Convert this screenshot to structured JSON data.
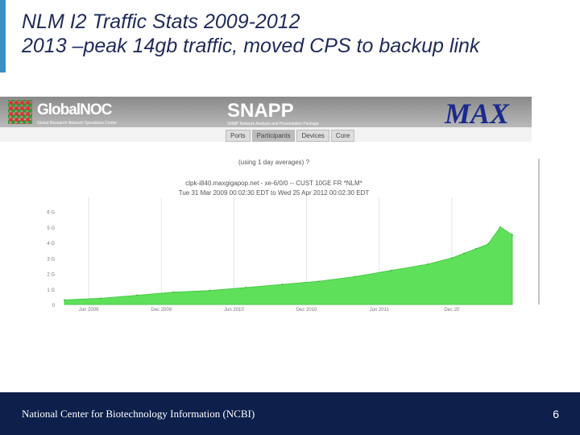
{
  "slide": {
    "title_line1": "NLM  I2 Traffic Stats 2009-2012",
    "title_line2": "2013 –peak 14gb traffic, moved CPS to backup link",
    "footer": "National Center for Biotechnology Information (NCBI)",
    "page_number": "6"
  },
  "banner": {
    "globalnoc": "GlobalNOC",
    "globalnoc_sub": "Global Research Network Operations Center",
    "snapp": "SNAPP",
    "snapp_sub": "SNMP Network Analysis and Presentation Package",
    "max": "MAX",
    "tabs": [
      "Ports",
      "Participants",
      "Devices",
      "Core"
    ],
    "active_tab": "Participants"
  },
  "chart_data": {
    "type": "area",
    "averaging_note": "(using 1 day averages) ?",
    "port": "clpk-i840.maxgigapop.net - xe-6/0/0 -- CUST 10GE FR *NLM*",
    "date_range": "Tue 31 Mar 2009 00:02:30 EDT to Wed 25 Apr 2012 00:02:30 EDT",
    "x_ticks": [
      "Jun 2009",
      "Dec 2009",
      "Jun 2010",
      "Dec 2010",
      "Jun 2011",
      "Dec 20"
    ],
    "y_ticks": [
      "0",
      "1 G",
      "2 G",
      "3 G",
      "4 G",
      "5 G",
      "6 G"
    ],
    "ylim": [
      0,
      6.5
    ],
    "series_color": "#5fe05a",
    "x_months": [
      0,
      3,
      6,
      9,
      12,
      15,
      18,
      21,
      24,
      27,
      30,
      32,
      33,
      34,
      35,
      36,
      37
    ],
    "y_gbps": [
      0.3,
      0.4,
      0.6,
      0.8,
      0.9,
      1.1,
      1.3,
      1.5,
      1.8,
      2.2,
      2.6,
      3.0,
      3.3,
      3.6,
      3.9,
      5.0,
      4.5
    ]
  }
}
